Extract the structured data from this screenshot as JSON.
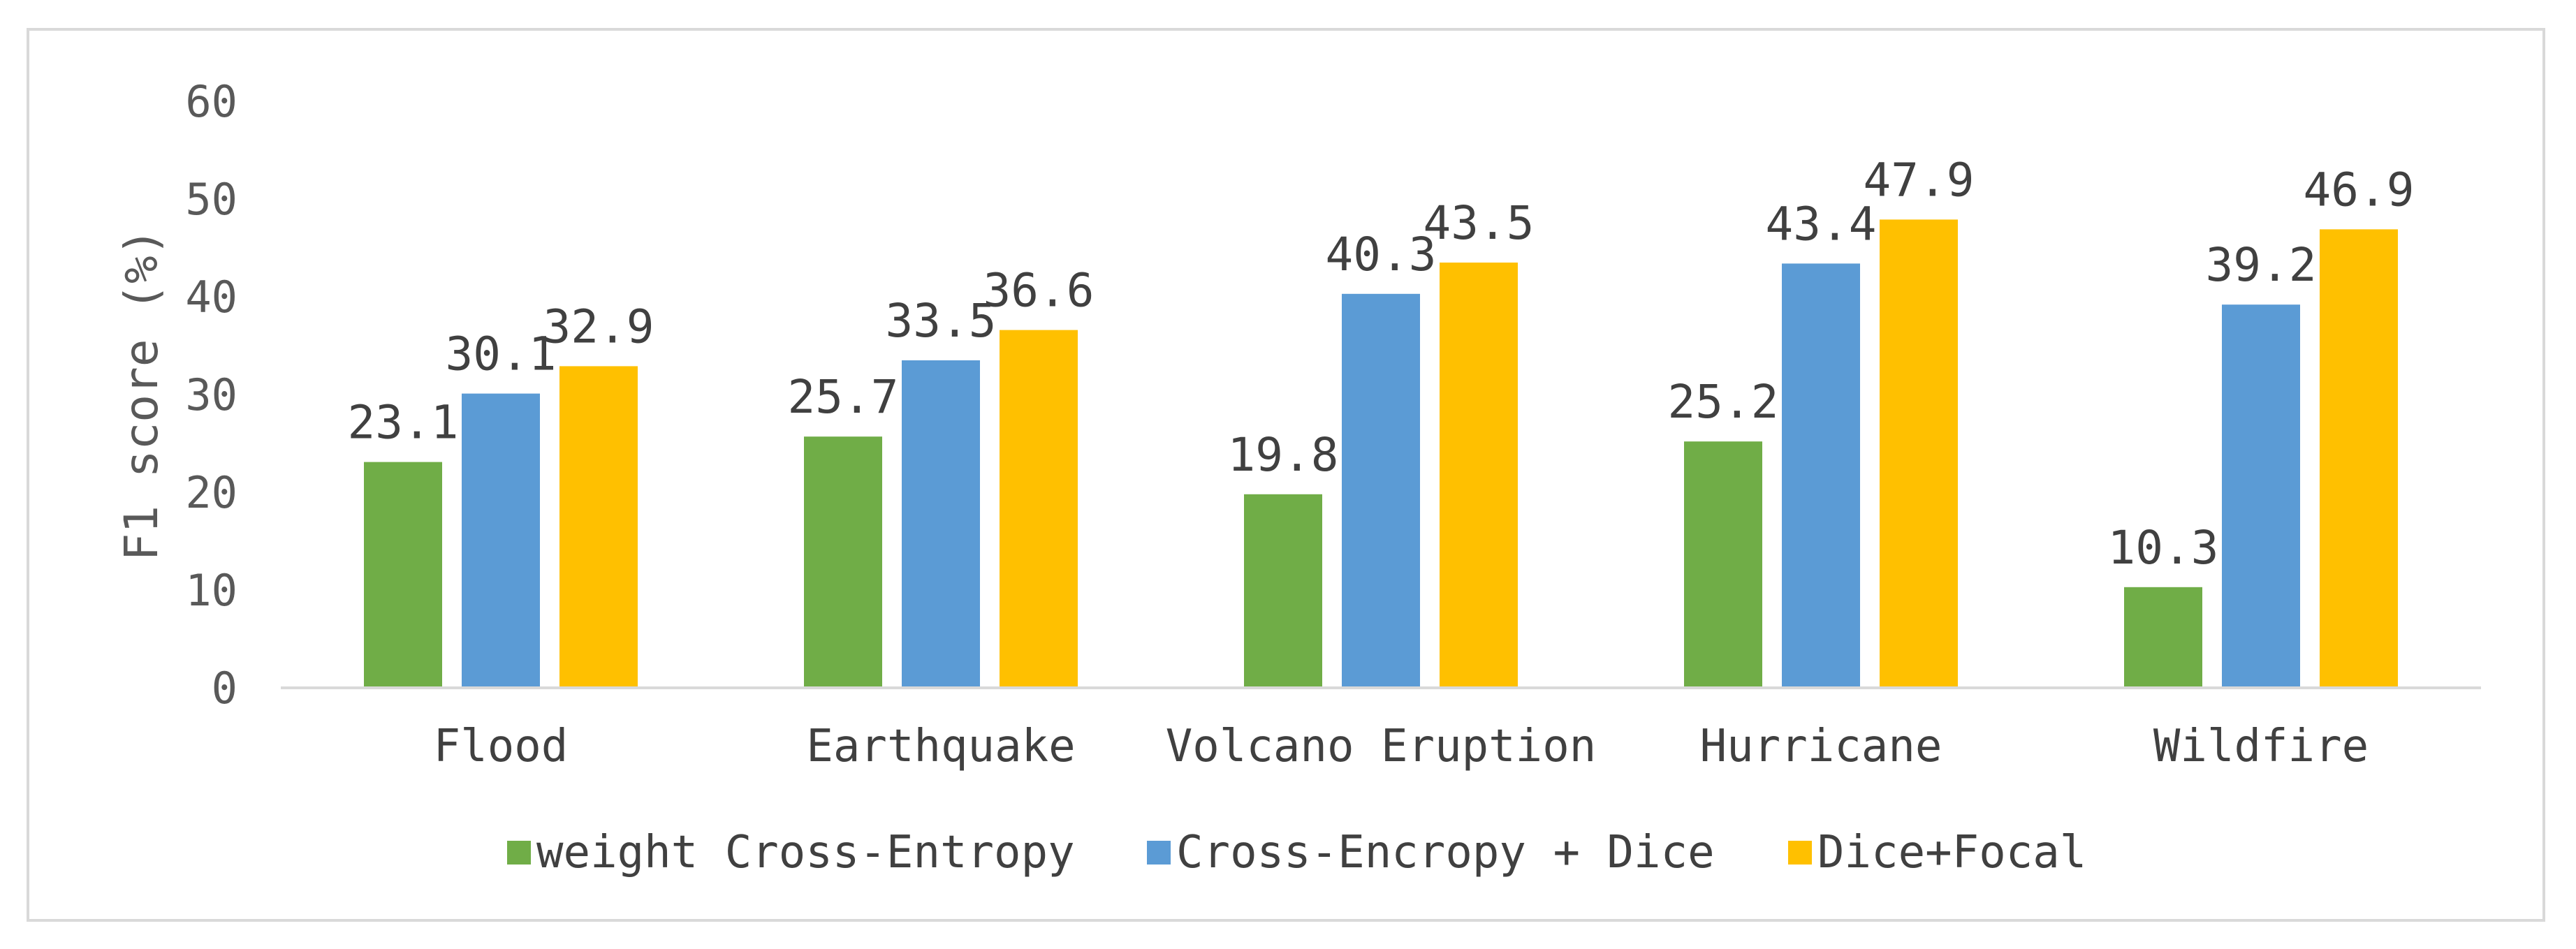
{
  "chart_data": {
    "type": "bar",
    "title": "",
    "xlabel": "",
    "ylabel": "F1 score (%)",
    "ylim": [
      0,
      60
    ],
    "yticks": [
      0,
      10,
      20,
      30,
      40,
      50,
      60
    ],
    "grid": false,
    "legend_position": "bottom",
    "categories": [
      "Flood",
      "Earthquake",
      "Volcano Eruption",
      "Hurricane",
      "Wildfire"
    ],
    "series": [
      {
        "name": "weight Cross-Entropy",
        "color": "#70ad47",
        "values": [
          23.1,
          25.7,
          19.8,
          25.2,
          10.3
        ]
      },
      {
        "name": "Cross-Encropy + Dice",
        "color": "#5b9bd5",
        "values": [
          30.1,
          33.5,
          40.3,
          43.4,
          39.2
        ]
      },
      {
        "name": "Dice+Focal",
        "color": "#ffc000",
        "values": [
          32.9,
          36.6,
          43.5,
          47.9,
          46.9
        ]
      }
    ]
  }
}
